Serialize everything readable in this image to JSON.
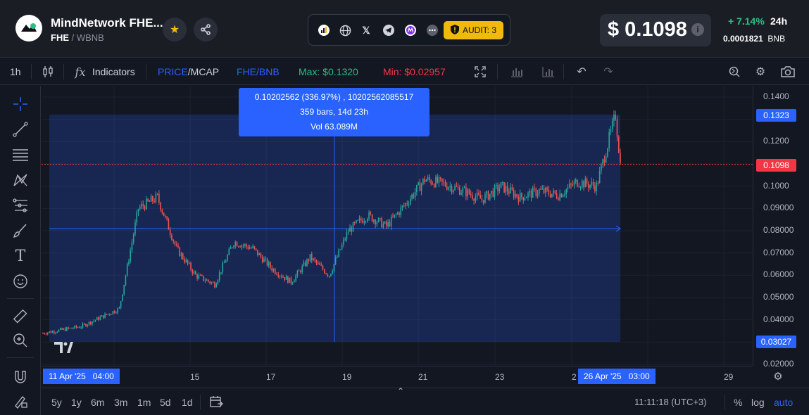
{
  "header": {
    "token_name": "MindNetwork FHE...",
    "symbol": "FHE",
    "quote": "WBNB",
    "audit_label": "AUDIT: 3",
    "price": "$ 0.1098",
    "change": "+ 7.14%",
    "period": "24h",
    "bnb_price": "0.0001821",
    "bnb_unit": "BNB",
    "socials": [
      "chart-icon",
      "globe-icon",
      "x-icon",
      "telegram-icon",
      "coin-icon",
      "more-icon"
    ]
  },
  "toolbar": {
    "interval": "1h",
    "indicators": "Indicators",
    "price_label": "PRICE",
    "mcap_label": "/MCAP",
    "pair_label": "FHE/BNB",
    "max_label": "Max: $0.1320",
    "min_label": "Min: $0.02957",
    "colors": {
      "accent": "#2962ff",
      "up": "#26a69a",
      "down": "#ef5350",
      "max": "#2ebd85",
      "min": "#f23645"
    }
  },
  "tooltip": {
    "line1": "0.10202562 (336.97%) , 10202562085517",
    "line2": "359 bars, 14d 23h",
    "line3": "Vol 63.089M"
  },
  "yaxis": {
    "ticks": [
      "0.1400",
      "0.1300",
      "0.1200",
      "0.1100",
      "0.1000",
      "0.09000",
      "0.08000",
      "0.07000",
      "0.06000",
      "0.05000",
      "0.04000",
      "0.03000",
      "0.02000"
    ],
    "badge_top": "0.1323",
    "badge_current": "0.1098",
    "badge_bottom": "0.03027"
  },
  "xaxis": {
    "ticks": [
      "15",
      "17",
      "19",
      "21",
      "23",
      "2",
      "29"
    ],
    "start_label": "11 Apr '25   04:00",
    "end_label": "26 Apr '25   03:00"
  },
  "bottombar": {
    "ranges": [
      "5y",
      "1y",
      "6m",
      "3m",
      "1m",
      "5d",
      "1d"
    ],
    "clock": "11:11:18 (UTC+3)",
    "percent": "%",
    "log": "log",
    "auto": "auto"
  },
  "chart_data": {
    "type": "candlestick",
    "pair": "FHE/BNB",
    "interval": "1h",
    "date_range": [
      "2025-04-11 04:00",
      "2025-04-26 03:00"
    ],
    "ylim": [
      0.02,
      0.14
    ],
    "current_price": 0.1098,
    "max_price": 0.132,
    "min_price": 0.02957,
    "measure_range": {
      "from_price": 0.03027,
      "to_price": 0.1323,
      "change_pct": 336.97,
      "bars": 359,
      "duration": "14d 23h",
      "volume": "63.089M"
    },
    "approx_path": [
      [
        "2025-04-11",
        0.034
      ],
      [
        "2025-04-12",
        0.037
      ],
      [
        "2025-04-13",
        0.045
      ],
      [
        "2025-04-13 12:00",
        0.09
      ],
      [
        "2025-04-14",
        0.095
      ],
      [
        "2025-04-14 12:00",
        0.072
      ],
      [
        "2025-04-15",
        0.06
      ],
      [
        "2025-04-15 12:00",
        0.056
      ],
      [
        "2025-04-16",
        0.075
      ],
      [
        "2025-04-16 12:00",
        0.072
      ],
      [
        "2025-04-17",
        0.063
      ],
      [
        "2025-04-17 12:00",
        0.057
      ],
      [
        "2025-04-18",
        0.068
      ],
      [
        "2025-04-18 12:00",
        0.06
      ],
      [
        "2025-04-19",
        0.08
      ],
      [
        "2025-04-19 12:00",
        0.087
      ],
      [
        "2025-04-20",
        0.082
      ],
      [
        "2025-04-20 12:00",
        0.092
      ],
      [
        "2025-04-21",
        0.103
      ],
      [
        "2025-04-21 12:00",
        0.101
      ],
      [
        "2025-04-22",
        0.098
      ],
      [
        "2025-04-22 12:00",
        0.094
      ],
      [
        "2025-04-23",
        0.1
      ],
      [
        "2025-04-23 12:00",
        0.095
      ],
      [
        "2025-04-24",
        0.098
      ],
      [
        "2025-04-24 12:00",
        0.096
      ],
      [
        "2025-04-25",
        0.102
      ],
      [
        "2025-04-25 12:00",
        0.1
      ],
      [
        "2025-04-26",
        0.132
      ],
      [
        "2025-04-26 03:00",
        0.1098
      ]
    ]
  }
}
